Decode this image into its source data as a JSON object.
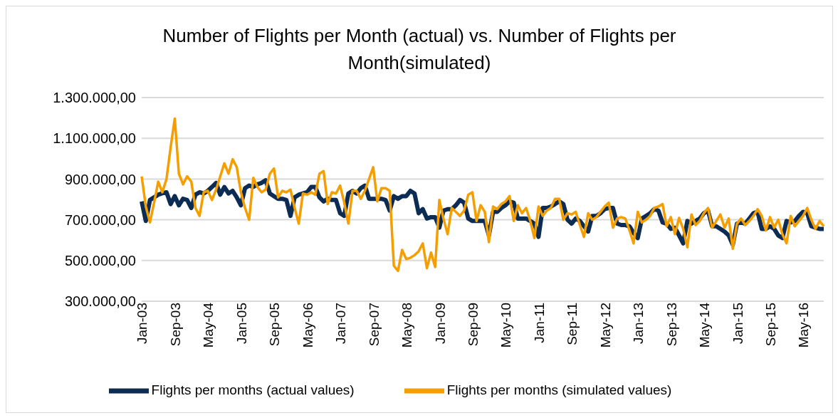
{
  "chart_data": {
    "type": "line",
    "title": "Number of Flights per Month (actual) vs. Number of Flights per Month(simulated)",
    "categories": [
      "Jan-03",
      null,
      null,
      null,
      null,
      null,
      null,
      null,
      "Sep-03",
      null,
      null,
      null,
      null,
      null,
      null,
      null,
      "May-04",
      null,
      null,
      null,
      null,
      null,
      null,
      null,
      "Jan-05",
      null,
      null,
      null,
      null,
      null,
      null,
      null,
      "Sep-05",
      null,
      null,
      null,
      null,
      null,
      null,
      null,
      "May-06",
      null,
      null,
      null,
      null,
      null,
      null,
      null,
      "Jan-07",
      null,
      null,
      null,
      null,
      null,
      null,
      null,
      "Sep-07",
      null,
      null,
      null,
      null,
      null,
      null,
      null,
      "May-08",
      null,
      null,
      null,
      null,
      null,
      null,
      null,
      "Jan-09",
      null,
      null,
      null,
      null,
      null,
      null,
      null,
      "Sep-09",
      null,
      null,
      null,
      null,
      null,
      null,
      null,
      "May-10",
      null,
      null,
      null,
      null,
      null,
      null,
      null,
      "Jan-11",
      null,
      null,
      null,
      null,
      null,
      null,
      null,
      "Sep-11",
      null,
      null,
      null,
      null,
      null,
      null,
      null,
      "May-12",
      null,
      null,
      null,
      null,
      null,
      null,
      null,
      "Jan-13",
      null,
      null,
      null,
      null,
      null,
      null,
      null,
      "Sep-13",
      null,
      null,
      null,
      null,
      null,
      null,
      null,
      "May-14",
      null,
      null,
      null,
      null,
      null,
      null,
      null,
      "Jan-15",
      null,
      null,
      null,
      null,
      null,
      null,
      null,
      "Sep-15",
      null,
      null,
      null,
      null,
      null,
      null,
      null,
      "May-16",
      null,
      null,
      null,
      null,
      null
    ],
    "series": [
      {
        "name": "Flights per months (actual values)",
        "color": "#0d2c54",
        "values": [
          790000,
          694000,
          797000,
          810000,
          823000,
          830000,
          835000,
          777000,
          816000,
          771000,
          803000,
          797000,
          758000,
          823000,
          835000,
          829000,
          842000,
          861000,
          881000,
          823000,
          861000,
          829000,
          842000,
          810000,
          771000,
          855000,
          868000,
          861000,
          874000,
          881000,
          894000,
          829000,
          816000,
          803000,
          803000,
          797000,
          719000,
          810000,
          823000,
          829000,
          835000,
          861000,
          861000,
          810000,
          790000,
          803000,
          797000,
          797000,
          732000,
          719000,
          829000,
          842000,
          829000,
          855000,
          868000,
          803000,
          803000,
          803000,
          803000,
          797000,
          745000,
          816000,
          803000,
          816000,
          816000,
          842000,
          829000,
          732000,
          752000,
          706000,
          713000,
          713000,
          661000,
          745000,
          752000,
          752000,
          771000,
          797000,
          784000,
          706000,
          694000,
          694000,
          694000,
          694000,
          623000,
          739000,
          739000,
          758000,
          771000,
          790000,
          784000,
          706000,
          706000,
          706000,
          694000,
          681000,
          616000,
          758000,
          758000,
          765000,
          777000,
          790000,
          777000,
          700000,
          681000,
          706000,
          694000,
          668000,
          642000,
          719000,
          719000,
          732000,
          752000,
          758000,
          758000,
          681000,
          674000,
          674000,
          668000,
          635000,
          610000,
          706000,
          719000,
          732000,
          752000,
          745000,
          687000,
          681000,
          655000,
          661000,
          623000,
          584000,
          694000,
          681000,
          694000,
          706000,
          732000,
          745000,
          668000,
          668000,
          655000,
          642000,
          623000,
          577000,
          681000,
          687000,
          681000,
          706000,
          732000,
          739000,
          655000,
          655000,
          668000,
          655000,
          623000,
          610000,
          694000,
          687000,
          694000,
          719000,
          739000,
          732000,
          668000,
          661000,
          655000,
          655000
        ]
      },
      {
        "name": "Flights per months (simulated values)",
        "color": "#f59e00",
        "values": [
          913000,
          765000,
          687000,
          784000,
          887000,
          835000,
          900000,
          1055000,
          1197000,
          926000,
          874000,
          913000,
          887000,
          758000,
          719000,
          835000,
          842000,
          797000,
          848000,
          913000,
          977000,
          926000,
          997000,
          958000,
          835000,
          758000,
          700000,
          906000,
          861000,
          835000,
          848000,
          926000,
          952000,
          810000,
          842000,
          835000,
          848000,
          758000,
          681000,
          829000,
          823000,
          835000,
          823000,
          926000,
          939000,
          777000,
          835000,
          829000,
          868000,
          784000,
          681000,
          842000,
          842000,
          803000,
          842000,
          900000,
          958000,
          790000,
          855000,
          855000,
          842000,
          474000,
          449000,
          552000,
          507000,
          513000,
          526000,
          545000,
          584000,
          462000,
          539000,
          468000,
          797000,
          706000,
          629000,
          758000,
          739000,
          719000,
          745000,
          823000,
          835000,
          694000,
          771000,
          739000,
          590000,
          765000,
          752000,
          777000,
          790000,
          816000,
          694000,
          771000,
          732000,
          758000,
          694000,
          610000,
          765000,
          719000,
          745000,
          758000,
          803000,
          803000,
          700000,
          732000,
          726000,
          739000,
          674000,
          616000,
          732000,
          700000,
          713000,
          739000,
          765000,
          784000,
          661000,
          706000,
          713000,
          706000,
          648000,
          584000,
          739000,
          687000,
          700000,
          719000,
          758000,
          765000,
          777000,
          668000,
          713000,
          629000,
          709000,
          655000,
          565000,
          726000,
          674000,
          694000,
          732000,
          758000,
          661000,
          694000,
          726000,
          661000,
          706000,
          558000,
          681000,
          706000,
          674000,
          694000,
          719000,
          752000,
          719000,
          648000,
          713000,
          661000,
          700000,
          629000,
          584000,
          719000,
          668000,
          694000,
          719000,
          758000,
          700000,
          655000,
          694000,
          668000
        ]
      }
    ],
    "ylim": [
      300000,
      1300000
    ],
    "yticks": [
      {
        "value": 300000,
        "label": "300.000,00"
      },
      {
        "value": 500000,
        "label": "500.000,00"
      },
      {
        "value": 700000,
        "label": "700.000,00"
      },
      {
        "value": 900000,
        "label": "900.000,00"
      },
      {
        "value": 1100000,
        "label": "1.100.000,00"
      },
      {
        "value": 1300000,
        "label": "1.300.000,00"
      }
    ],
    "grid": "y",
    "legend": "bottom",
    "marker": "none",
    "line_style": "solid"
  }
}
